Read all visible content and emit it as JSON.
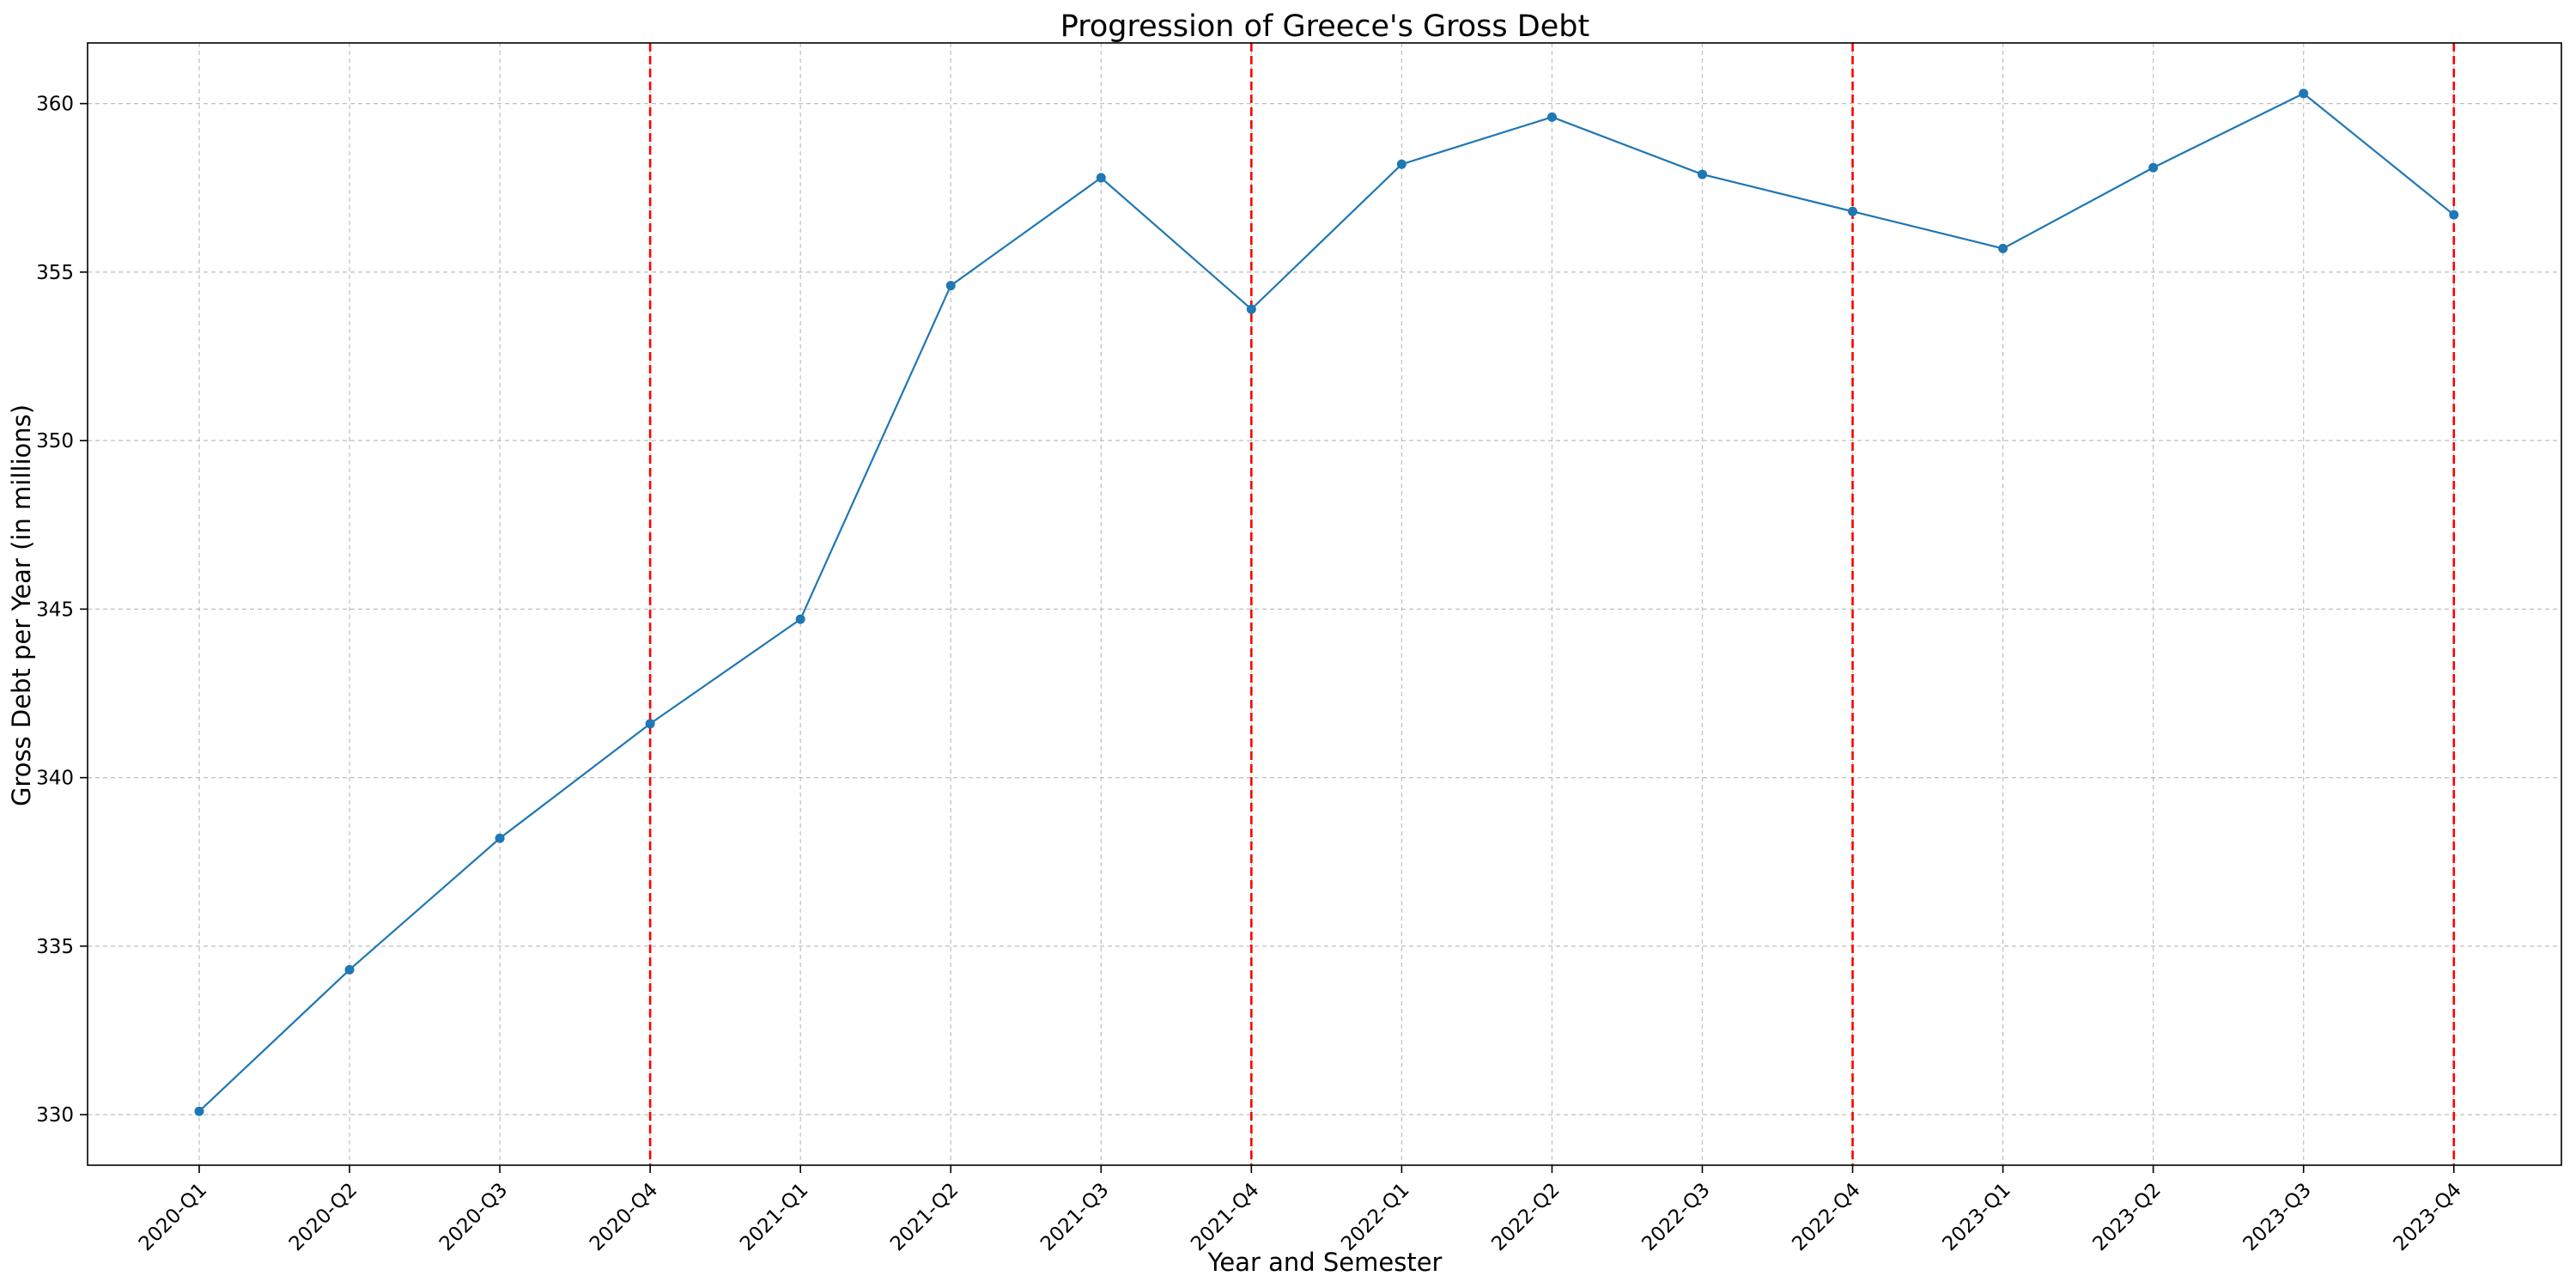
{
  "chart_data": {
    "type": "line",
    "title": "Progression of Greece's Gross Debt",
    "xlabel": "Year and Semester",
    "ylabel": "Gross Debt per Year (in millions)",
    "categories": [
      "2020-Q1",
      "2020-Q2",
      "2020-Q3",
      "2020-Q4",
      "2021-Q1",
      "2021-Q2",
      "2021-Q3",
      "2021-Q4",
      "2022-Q1",
      "2022-Q2",
      "2022-Q3",
      "2022-Q4",
      "2023-Q1",
      "2023-Q2",
      "2023-Q3",
      "2023-Q4"
    ],
    "series": [
      {
        "values": [
          330.1,
          334.3,
          338.2,
          341.6,
          344.7,
          354.6,
          357.8,
          353.9,
          358.2,
          359.6,
          357.9,
          356.8,
          355.7,
          358.1,
          360.3,
          356.7
        ],
        "color": "#1f77b4"
      }
    ],
    "year_end_markers": [
      "2020-Q4",
      "2021-Q4",
      "2022-Q4",
      "2023-Q4"
    ],
    "marker_color": "#ff0000",
    "ylim": [
      328.5,
      361.8
    ],
    "yticks": [
      330,
      335,
      340,
      345,
      350,
      355,
      360
    ],
    "grid": true
  }
}
